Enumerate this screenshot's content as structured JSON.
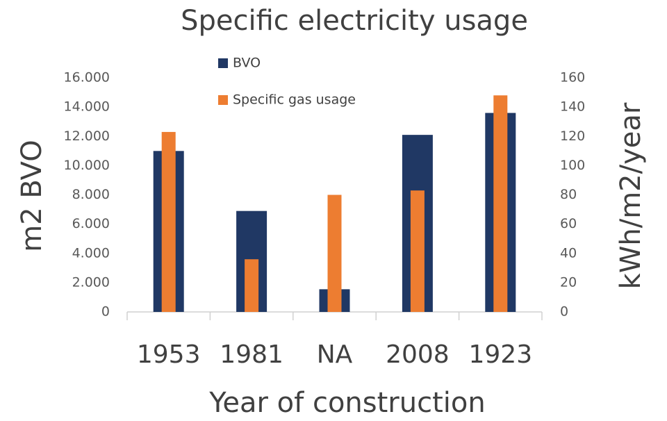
{
  "chart_data": {
    "type": "bar",
    "title": "Specific electricity usage",
    "x_label": "Year of construction",
    "y_label": "m2 BVO",
    "y2_label": "kWh/m2/year",
    "categories": [
      "1953",
      "1981",
      "NA",
      "2008",
      "1923"
    ],
    "series": [
      {
        "name": "BVO",
        "color": "#203864",
        "values": [
          11000,
          6900,
          1550,
          12100,
          13600
        ]
      },
      {
        "name": "Specific gas usage",
        "color": "#ed7d31",
        "axis": "y2",
        "values": [
          123,
          36,
          80,
          83,
          148
        ]
      }
    ],
    "ylim": [
      0,
      16000
    ],
    "yticks": [
      0,
      {
        "value": 2000,
        "label": "2.000"
      },
      {
        "value": 4000,
        "label": "4.000"
      },
      {
        "value": 6000,
        "label": "6.000"
      },
      {
        "value": 8000,
        "label": "8.000"
      },
      {
        "value": 10000,
        "label": "10.000"
      },
      {
        "value": 12000,
        "label": "12.000"
      },
      {
        "value": 14000,
        "label": "14.000"
      },
      {
        "value": 16000,
        "label": "16.000"
      }
    ],
    "y2lim": [
      0,
      160
    ],
    "y2ticks": [
      0,
      20,
      40,
      60,
      80,
      100,
      120,
      140,
      160
    ],
    "grid": false
  }
}
